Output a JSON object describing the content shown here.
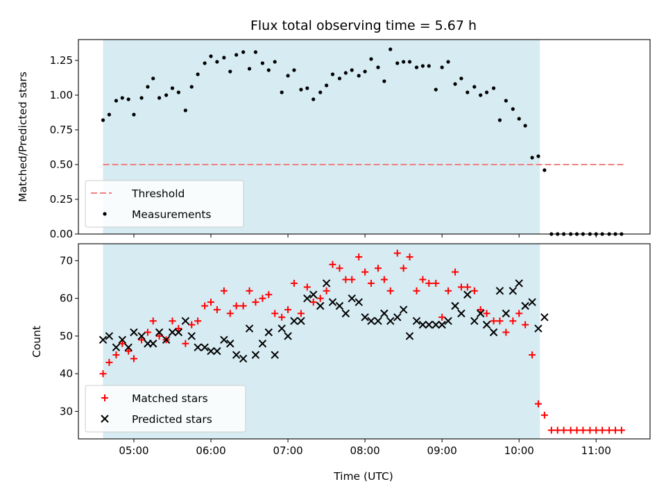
{
  "chart_data": [
    {
      "type": "scatter",
      "title": "Flux total observing time = 5.67 h",
      "xlabel": "",
      "ylabel": "Matched/Predicted stars",
      "xlim": [
        4.28,
        11.7
      ],
      "ylim": [
        0.0,
        1.4
      ],
      "yticks": [
        0.0,
        0.25,
        0.5,
        0.75,
        1.0,
        1.25
      ],
      "ytick_labels": [
        "0.00",
        "0.25",
        "0.50",
        "0.75",
        "1.00",
        "1.25"
      ],
      "shaded_span": {
        "x0": 4.6,
        "x1": 10.27,
        "color": "#add8e6"
      },
      "threshold": {
        "name": "Threshold",
        "y": 0.5,
        "x0": 4.6,
        "x1": 11.37,
        "color": "#f08080"
      },
      "legend": {
        "location": "lower-left",
        "entries": [
          "Threshold",
          "Measurements"
        ]
      },
      "series": [
        {
          "name": "Measurements",
          "marker": "dot",
          "color": "#000000",
          "x": [
            4.6,
            4.68,
            4.77,
            4.85,
            4.93,
            5.0,
            5.1,
            5.18,
            5.25,
            5.33,
            5.42,
            5.5,
            5.58,
            5.67,
            5.75,
            5.83,
            5.92,
            6.0,
            6.08,
            6.17,
            6.25,
            6.33,
            6.42,
            6.5,
            6.58,
            6.67,
            6.75,
            6.83,
            6.92,
            7.0,
            7.08,
            7.17,
            7.25,
            7.33,
            7.42,
            7.5,
            7.58,
            7.67,
            7.75,
            7.83,
            7.92,
            8.0,
            8.08,
            8.17,
            8.25,
            8.33,
            8.42,
            8.5,
            8.58,
            8.67,
            8.75,
            8.83,
            8.92,
            9.0,
            9.08,
            9.17,
            9.25,
            9.33,
            9.42,
            9.5,
            9.58,
            9.67,
            9.75,
            9.83,
            9.92,
            10.0,
            10.08,
            10.17,
            10.25,
            10.33,
            10.42,
            10.5,
            10.58,
            10.67,
            10.75,
            10.83,
            10.92,
            11.0,
            11.08,
            11.17,
            11.25,
            11.33
          ],
          "y": [
            0.82,
            0.86,
            0.96,
            0.98,
            0.97,
            0.86,
            0.98,
            1.06,
            1.12,
            0.98,
            1.0,
            1.05,
            1.02,
            0.89,
            1.06,
            1.15,
            1.23,
            1.28,
            1.24,
            1.27,
            1.17,
            1.29,
            1.31,
            1.19,
            1.31,
            1.23,
            1.18,
            1.24,
            1.02,
            1.14,
            1.18,
            1.04,
            1.05,
            0.97,
            1.02,
            1.07,
            1.15,
            1.12,
            1.16,
            1.18,
            1.14,
            1.17,
            1.26,
            1.2,
            1.1,
            1.33,
            1.23,
            1.24,
            1.24,
            1.2,
            1.21,
            1.21,
            1.04,
            1.2,
            1.24,
            1.08,
            1.12,
            1.02,
            1.06,
            1.0,
            1.02,
            1.05,
            0.82,
            0.96,
            0.9,
            0.83,
            0.78,
            0.55,
            0.56,
            0.46,
            0.0,
            0.0,
            0.0,
            0.0,
            0.0,
            0.0,
            0.0,
            0.0,
            0.0,
            0.0,
            0.0,
            0.0
          ]
        }
      ]
    },
    {
      "type": "scatter",
      "title": "",
      "xlabel": "Time (UTC)",
      "ylabel": "Count",
      "xlim": [
        4.28,
        11.7
      ],
      "ylim": [
        22.7,
        74.5
      ],
      "xticks": [
        5,
        6,
        7,
        8,
        9,
        10,
        11
      ],
      "xtick_labels": [
        "05:00",
        "06:00",
        "07:00",
        "08:00",
        "09:00",
        "10:00",
        "11:00"
      ],
      "yticks": [
        30,
        40,
        50,
        60,
        70
      ],
      "ytick_labels": [
        "30",
        "40",
        "50",
        "60",
        "70"
      ],
      "shaded_span": {
        "x0": 4.6,
        "x1": 10.27,
        "color": "#add8e6"
      },
      "legend": {
        "location": "lower-left",
        "entries": [
          "Matched stars",
          "Predicted stars"
        ]
      },
      "series": [
        {
          "name": "Matched stars",
          "marker": "plus",
          "color": "#ff0000",
          "x": [
            4.6,
            4.68,
            4.77,
            4.85,
            4.93,
            5.0,
            5.1,
            5.18,
            5.25,
            5.33,
            5.42,
            5.5,
            5.58,
            5.67,
            5.75,
            5.83,
            5.92,
            6.0,
            6.08,
            6.17,
            6.25,
            6.33,
            6.42,
            6.5,
            6.58,
            6.67,
            6.75,
            6.83,
            6.92,
            7.0,
            7.08,
            7.17,
            7.25,
            7.33,
            7.42,
            7.5,
            7.58,
            7.67,
            7.75,
            7.83,
            7.92,
            8.0,
            8.08,
            8.17,
            8.25,
            8.33,
            8.42,
            8.5,
            8.58,
            8.67,
            8.75,
            8.83,
            8.92,
            9.0,
            9.08,
            9.17,
            9.25,
            9.33,
            9.42,
            9.5,
            9.58,
            9.67,
            9.75,
            9.83,
            9.92,
            10.0,
            10.08,
            10.17,
            10.25,
            10.33,
            10.42,
            10.5,
            10.58,
            10.67,
            10.75,
            10.83,
            10.92,
            11.0,
            11.08,
            11.17,
            11.25,
            11.33
          ],
          "y": [
            40,
            43,
            45,
            48,
            46,
            44,
            49,
            51,
            54,
            50,
            49,
            54,
            52,
            48,
            53,
            54,
            58,
            59,
            57,
            62,
            56,
            58,
            58,
            62,
            59,
            60,
            61,
            56,
            55,
            57,
            64,
            56,
            63,
            59,
            60,
            62,
            69,
            68,
            65,
            65,
            71,
            67,
            64,
            68,
            65,
            62,
            72,
            68,
            71,
            62,
            65,
            64,
            64,
            55,
            62,
            67,
            63,
            63,
            62,
            57,
            56,
            54,
            54,
            51,
            54,
            56,
            53,
            45,
            32,
            29,
            25,
            25,
            25,
            25,
            25,
            25,
            25,
            25,
            25,
            25,
            25,
            25
          ]
        },
        {
          "name": "Predicted stars",
          "marker": "x",
          "color": "#000000",
          "x": [
            4.6,
            4.68,
            4.77,
            4.85,
            4.93,
            5.0,
            5.1,
            5.18,
            5.25,
            5.33,
            5.42,
            5.5,
            5.58,
            5.67,
            5.75,
            5.83,
            5.92,
            6.0,
            6.08,
            6.17,
            6.25,
            6.33,
            6.42,
            6.5,
            6.58,
            6.67,
            6.75,
            6.83,
            6.92,
            7.0,
            7.08,
            7.17,
            7.25,
            7.33,
            7.42,
            7.5,
            7.58,
            7.67,
            7.75,
            7.83,
            7.92,
            8.0,
            8.08,
            8.17,
            8.25,
            8.33,
            8.42,
            8.5,
            8.58,
            8.67,
            8.75,
            8.83,
            8.92,
            9.0,
            9.08,
            9.17,
            9.25,
            9.33,
            9.42,
            9.5,
            9.58,
            9.67,
            9.75,
            9.83,
            9.92,
            10.0,
            10.08,
            10.17,
            10.25,
            10.33
          ],
          "y": [
            49,
            50,
            47,
            49,
            47,
            51,
            50,
            48,
            48,
            51,
            49,
            51,
            51,
            54,
            50,
            47,
            47,
            46,
            46,
            49,
            48,
            45,
            44,
            52,
            45,
            48,
            51,
            45,
            52,
            50,
            54,
            54,
            60,
            61,
            58,
            64,
            59,
            58,
            56,
            60,
            59,
            55,
            54,
            54,
            56,
            54,
            55,
            57,
            50,
            54,
            53,
            53,
            53,
            53,
            54,
            58,
            56,
            61,
            54,
            56,
            53,
            51,
            62,
            56,
            62,
            64,
            58,
            59,
            52,
            55
          ]
        }
      ]
    }
  ]
}
